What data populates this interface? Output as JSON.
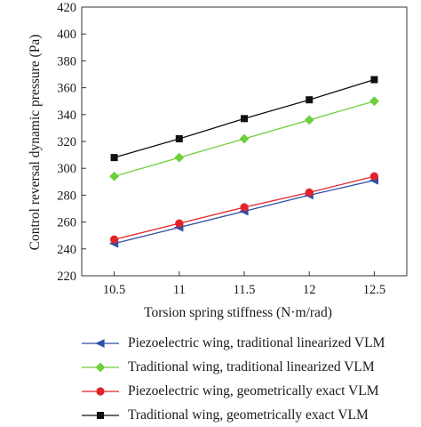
{
  "chart_data": {
    "type": "line",
    "title": "",
    "xlabel": "Torsion spring stiffness (N·m/rad)",
    "ylabel": "Control reversal dynamic pressure (Pa)",
    "x": [
      10.5,
      11,
      11.5,
      12,
      12.5
    ],
    "xlim": [
      10.25,
      12.75
    ],
    "ylim": [
      220,
      420
    ],
    "xticks": [
      "10.5",
      "11",
      "11.5",
      "12",
      "12.5"
    ],
    "yticks": [
      "220",
      "240",
      "260",
      "280",
      "300",
      "320",
      "340",
      "360",
      "380",
      "400",
      "420"
    ],
    "grid": false,
    "legend_position": "below",
    "series": [
      {
        "name": "Piezoelectric wing, traditional linearized VLM",
        "color": "#2e4fa8",
        "marker": "triangle-left",
        "values": [
          244,
          256,
          268,
          280,
          291
        ]
      },
      {
        "name": "Traditional wing, traditional linearized VLM",
        "color": "#6ccf3b",
        "marker": "diamond",
        "values": [
          294,
          308,
          322,
          336,
          350
        ]
      },
      {
        "name": "Piezoelectric wing, geometrically exact VLM",
        "color": "#e0242a",
        "marker": "circle",
        "values": [
          247,
          259,
          271,
          282,
          294
        ]
      },
      {
        "name": "Traditional wing, geometrically exact VLM",
        "color": "#111111",
        "marker": "square",
        "values": [
          308,
          322,
          337,
          351,
          366
        ]
      }
    ]
  }
}
